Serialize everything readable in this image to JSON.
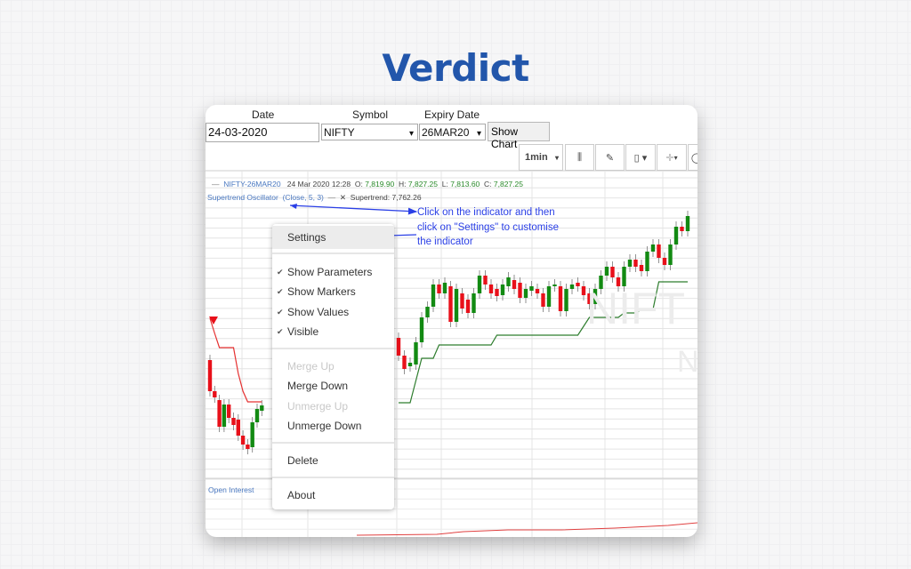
{
  "page_title": "Verdict",
  "form": {
    "date_label": "Date",
    "date_value": "24-03-2020",
    "symbol_label": "Symbol",
    "symbol_value": "NIFTY",
    "expiry_label": "Expiry Date",
    "expiry_value": "26MAR20",
    "show_chart": "Show Chart"
  },
  "toolbar": {
    "interval": "1min",
    "icons": [
      "bar-type-icon",
      "drawing-tools-icon",
      "candlestick-icon",
      "crosshair-icon"
    ]
  },
  "legend": {
    "symbol": "NIFTY-26MAR20",
    "datetime": "24 Mar 2020 12:28",
    "o_label": "O:",
    "o": "7,819.90",
    "h_label": "H:",
    "h": "7,827.25",
    "l_label": "L:",
    "l": "7,813.60",
    "c_label": "C:",
    "c": "7,827.25",
    "indicator": "Supertrend Oscillator",
    "params": "(Close, 5, 3)",
    "close_x": "✕",
    "value_label": "Supertrend:",
    "value": "7,762.26",
    "open_interest": "Open Interest"
  },
  "watermark": {
    "text1": "NIFT",
    "text2": "N"
  },
  "context_menu": {
    "items": [
      {
        "label": "Settings",
        "highlighted": true
      },
      {
        "label": "Show Parameters",
        "checked": true
      },
      {
        "label": "Show Markers",
        "checked": true
      },
      {
        "label": "Show Values",
        "checked": true
      },
      {
        "label": "Visible",
        "checked": true
      },
      {
        "label": "Merge Up",
        "disabled": true
      },
      {
        "label": "Merge Down"
      },
      {
        "label": "Unmerge Up",
        "disabled": true
      },
      {
        "label": "Unmerge Down"
      },
      {
        "label": "Delete"
      },
      {
        "label": "About"
      }
    ]
  },
  "annotation": {
    "line1": "Click on the indicator and then",
    "line2": "click on \"Settings\" to customise",
    "line3": "the indicator"
  },
  "colors": {
    "up": "#128a12",
    "down": "#e8101a",
    "supertrend_up": "#2e7d2e",
    "supertrend_down": "#e53030",
    "annotation": "#2a3fe6",
    "title": "#2256ab"
  },
  "chart_data": {
    "type": "candlestick",
    "left_candles": [
      [
        7695,
        7660
      ],
      [
        7660,
        7653
      ],
      [
        7650,
        7620
      ],
      [
        7620,
        7645
      ],
      [
        7645,
        7630
      ],
      [
        7630,
        7622
      ],
      [
        7628,
        7610
      ],
      [
        7610,
        7600
      ],
      [
        7600,
        7595
      ],
      [
        7597,
        7625
      ],
      [
        7625,
        7640
      ],
      [
        7638,
        7644
      ]
    ],
    "left_supertrend": [
      7742,
      7725,
      7709,
      7709,
      7709,
      7709,
      7680,
      7660,
      7648,
      7648,
      7648,
      7648
    ],
    "right_candles": [
      [
        7720,
        7700
      ],
      [
        7700,
        7685
      ],
      [
        7688,
        7692
      ],
      [
        7690,
        7715
      ],
      [
        7715,
        7743
      ],
      [
        7743,
        7755
      ],
      [
        7755,
        7780
      ],
      [
        7780,
        7770
      ],
      [
        7770,
        7782
      ],
      [
        7778,
        7738
      ],
      [
        7738,
        7775
      ],
      [
        7770,
        7753
      ],
      [
        7763,
        7748
      ],
      [
        7748,
        7770
      ],
      [
        7770,
        7790
      ],
      [
        7790,
        7780
      ],
      [
        7780,
        7770
      ],
      [
        7775,
        7767
      ],
      [
        7768,
        7780
      ],
      [
        7778,
        7788
      ],
      [
        7785,
        7775
      ],
      [
        7782,
        7765
      ],
      [
        7765,
        7775
      ],
      [
        7773,
        7778
      ],
      [
        7775,
        7770
      ],
      [
        7770,
        7755
      ],
      [
        7755,
        7778
      ],
      [
        7778,
        7780
      ],
      [
        7778,
        7750
      ],
      [
        7750,
        7775
      ],
      [
        7775,
        7780
      ],
      [
        7782,
        7778
      ],
      [
        7778,
        7768
      ],
      [
        7770,
        7758
      ],
      [
        7758,
        7775
      ],
      [
        7775,
        7790
      ],
      [
        7790,
        7800
      ],
      [
        7800,
        7788
      ],
      [
        7788,
        7778
      ],
      [
        7778,
        7800
      ],
      [
        7800,
        7808
      ],
      [
        7808,
        7800
      ],
      [
        7802,
        7795
      ],
      [
        7795,
        7817
      ],
      [
        7817,
        7825
      ],
      [
        7825,
        7810
      ],
      [
        7810,
        7802
      ],
      [
        7802,
        7825
      ],
      [
        7825,
        7845
      ],
      [
        7845,
        7840
      ],
      [
        7840,
        7857
      ]
    ],
    "right_supertrend": [
      7647,
      7647,
      7647,
      7672,
      7697,
      7697,
      7697,
      7712,
      7712,
      7712,
      7712,
      7712,
      7712,
      7712,
      7712,
      7712,
      7712,
      7723,
      7723,
      7723,
      7723,
      7723,
      7723,
      7723,
      7723,
      7723,
      7723,
      7723,
      7723,
      7723,
      7723,
      7723,
      7733,
      7743,
      7743,
      7743,
      7743,
      7743,
      7743,
      7748,
      7748,
      7748,
      7752,
      7752,
      7752,
      7783,
      7783,
      7783,
      7783,
      7783,
      7783
    ]
  }
}
